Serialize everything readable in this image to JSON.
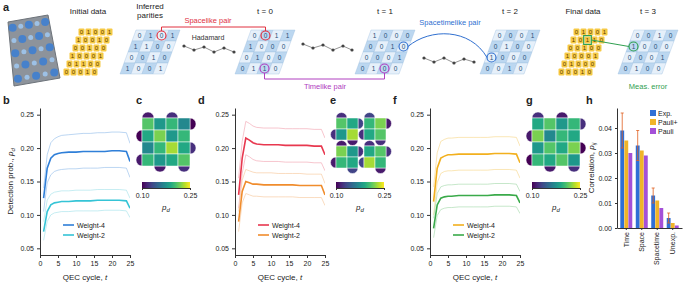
{
  "diagram": {
    "panel": "a",
    "initial_label": "Initial data",
    "final_label": "Final data",
    "initial_data": [
      [
        0,
        1,
        0,
        0,
        1
      ],
      [
        1,
        0,
        0,
        1,
        0
      ],
      [
        0,
        0,
        1,
        0,
        0
      ],
      [
        1,
        0,
        0,
        0,
        1
      ],
      [
        0,
        1,
        1,
        0,
        0
      ],
      [
        0,
        0,
        0,
        1,
        0
      ]
    ],
    "final_data": [
      [
        0,
        1,
        0,
        0,
        1
      ],
      [
        1,
        0,
        1,
        1,
        0
      ],
      [
        0,
        0,
        1,
        0,
        0
      ],
      [
        1,
        0,
        0,
        0,
        1
      ],
      [
        0,
        1,
        0,
        0,
        0
      ],
      [
        0,
        0,
        0,
        1,
        0
      ]
    ],
    "lattices": [
      {
        "label": [
          "Inferred",
          "parities"
        ],
        "bits": [
          [
            0,
            1,
            0,
            1
          ],
          [
            1,
            1,
            0,
            0
          ],
          [
            0,
            0,
            1,
            0
          ],
          [
            1,
            0,
            0,
            1
          ]
        ]
      },
      {
        "label": "t = 0",
        "bits": [
          [
            0,
            0,
            1,
            1
          ],
          [
            1,
            0,
            0,
            0
          ],
          [
            0,
            1,
            0,
            0
          ],
          [
            0,
            1,
            1,
            0
          ]
        ]
      },
      {
        "label": "t = 1",
        "bits": [
          [
            1,
            0,
            0,
            0
          ],
          [
            0,
            0,
            1,
            0
          ],
          [
            0,
            0,
            0,
            1
          ],
          [
            0,
            1,
            0,
            0
          ]
        ]
      },
      {
        "label": "t = 2",
        "bits": [
          [
            0,
            0,
            0,
            1
          ],
          [
            0,
            1,
            0,
            0
          ],
          [
            1,
            0,
            0,
            0
          ],
          [
            0,
            0,
            1,
            0
          ]
        ]
      },
      {
        "label": "t = 3",
        "bits": [
          [
            0,
            0,
            1,
            0
          ],
          [
            1,
            0,
            0,
            0
          ],
          [
            0,
            0,
            0,
            1
          ],
          [
            0,
            1,
            0,
            0
          ]
        ]
      }
    ],
    "annotations": [
      {
        "text": "Hadamard",
        "color": "#333333"
      },
      {
        "text": "Spacelike pair",
        "color": "#e0303f"
      },
      {
        "text": "Timelike pair",
        "color": "#b040c0"
      },
      {
        "text": "Spacetimelike pair",
        "color": "#3070d0"
      },
      {
        "text": "Meas. error",
        "color": "#30a050"
      }
    ]
  },
  "chart_data": [
    {
      "panel": "b",
      "type": "line",
      "x": [
        1,
        2,
        3,
        4,
        5,
        6,
        8,
        10,
        12,
        14,
        16,
        18,
        20,
        22,
        24,
        25
      ],
      "xlim": [
        0,
        25
      ],
      "xticks": [
        0,
        5,
        10,
        15,
        20,
        25
      ],
      "ylim": [
        0.04,
        0.26
      ],
      "yticks": [
        0.05,
        {
          "value": 0.1,
          "label": "0.10"
        },
        0.15,
        {
          "value": 0.2,
          "label": "0.20"
        },
        0.25
      ],
      "x_label": {
        "text": "QEC cycle, ",
        "symbol": "t"
      },
      "y_label": {
        "text": "Detection prob., ",
        "symbol": "p",
        "sub": "d"
      },
      "legend": "lower center",
      "series": [
        {
          "color": "#8fbbea",
          "values": [
            0.14,
            0.19,
            0.208,
            0.214,
            0.217,
            0.219,
            0.22,
            0.221,
            0.222,
            0.222,
            0.223,
            0.223,
            0.224,
            0.224,
            0.223,
            0.207
          ]
        },
        {
          "color": "#8fbbea",
          "values": [
            0.105,
            0.148,
            0.16,
            0.165,
            0.167,
            0.168,
            0.169,
            0.169,
            0.17,
            0.17,
            0.17,
            0.171,
            0.171,
            0.171,
            0.17,
            0.156
          ]
        },
        {
          "color": "#9fe0ea",
          "values": [
            0.09,
            0.122,
            0.131,
            0.134,
            0.135,
            0.136,
            0.136,
            0.137,
            0.137,
            0.137,
            0.138,
            0.138,
            0.138,
            0.138,
            0.137,
            0.125
          ]
        },
        {
          "color": "#9fe0ea",
          "values": [
            0.062,
            0.09,
            0.1,
            0.103,
            0.104,
            0.105,
            0.105,
            0.106,
            0.106,
            0.106,
            0.106,
            0.107,
            0.107,
            0.107,
            0.106,
            0.096
          ]
        },
        {
          "name": "Weight-4",
          "color": "#2f7fd8",
          "values": [
            0.125,
            0.17,
            0.185,
            0.19,
            0.192,
            0.193,
            0.194,
            0.194,
            0.195,
            0.195,
            0.195,
            0.195,
            0.196,
            0.196,
            0.195,
            0.18
          ]
        },
        {
          "name": "Weight-2",
          "color": "#35c4d6",
          "values": [
            0.075,
            0.105,
            0.115,
            0.118,
            0.119,
            0.12,
            0.12,
            0.121,
            0.121,
            0.121,
            0.122,
            0.122,
            0.122,
            0.122,
            0.121,
            0.11
          ]
        }
      ]
    },
    {
      "panel": "c",
      "type": "heatmap",
      "cells": [
        [
          0.21,
          0.18,
          0.2,
          0.17
        ],
        [
          0.19,
          0.22,
          0.18,
          0.2
        ],
        [
          0.17,
          0.2,
          0.23,
          0.19
        ],
        [
          0.2,
          0.18,
          0.19,
          0.21
        ]
      ],
      "boundary": [
        0.11,
        0.12,
        0.1,
        0.12,
        0.11,
        0.12,
        0.1,
        0.11
      ],
      "colorbar": {
        "range": [
          0.1,
          0.25
        ],
        "ticks": [
          {
            "value": 0.1,
            "label": "0.10"
          },
          0.25
        ],
        "label": {
          "symbol": "p",
          "sub": "d"
        }
      }
    },
    {
      "panel": "d",
      "type": "line",
      "x": [
        1,
        2,
        3,
        4,
        5,
        6,
        8,
        10,
        12,
        14,
        16,
        18,
        20,
        22,
        24,
        25
      ],
      "xlim": [
        0,
        25
      ],
      "xticks": [
        0,
        5,
        10,
        15,
        20,
        25
      ],
      "ylim": [
        0.04,
        0.26
      ],
      "yticks": [
        0.05,
        {
          "value": 0.1,
          "label": "0.10"
        },
        0.15,
        {
          "value": 0.2,
          "label": "0.20"
        },
        0.25
      ],
      "x_label": {
        "text": "QEC cycle, ",
        "symbol": "t"
      },
      "legend": "lower center",
      "series": [
        {
          "color": "#f2a0ad",
          "values": [
            0.155,
            0.21,
            0.24,
            0.237,
            0.233,
            0.231,
            0.23,
            0.23,
            0.23,
            0.229,
            0.229,
            0.229,
            0.229,
            0.228,
            0.228,
            0.215
          ]
        },
        {
          "color": "#f2a0ad",
          "values": [
            0.11,
            0.162,
            0.19,
            0.187,
            0.183,
            0.181,
            0.18,
            0.18,
            0.18,
            0.179,
            0.179,
            0.179,
            0.179,
            0.178,
            0.178,
            0.166
          ]
        },
        {
          "color": "#f7c596",
          "values": [
            0.105,
            0.152,
            0.168,
            0.166,
            0.164,
            0.163,
            0.163,
            0.163,
            0.162,
            0.162,
            0.162,
            0.162,
            0.161,
            0.161,
            0.161,
            0.147
          ]
        },
        {
          "color": "#f7c596",
          "values": [
            0.075,
            0.118,
            0.132,
            0.13,
            0.128,
            0.128,
            0.127,
            0.127,
            0.127,
            0.127,
            0.127,
            0.126,
            0.126,
            0.126,
            0.126,
            0.114
          ]
        },
        {
          "name": "Weight-4",
          "color": "#e8384f",
          "values": [
            0.13,
            0.185,
            0.215,
            0.212,
            0.208,
            0.206,
            0.205,
            0.205,
            0.205,
            0.204,
            0.204,
            0.204,
            0.204,
            0.203,
            0.203,
            0.19
          ]
        },
        {
          "name": "Weight-2",
          "color": "#f08c2c",
          "values": [
            0.09,
            0.135,
            0.15,
            0.148,
            0.146,
            0.146,
            0.145,
            0.145,
            0.145,
            0.145,
            0.145,
            0.144,
            0.144,
            0.144,
            0.144,
            0.13
          ]
        }
      ]
    },
    {
      "panel": "e",
      "type": "heatmap",
      "blocks": [
        {
          "cells": [
            [
              0.21,
              0.19
            ],
            [
              0.18,
              0.23
            ]
          ],
          "boundary": [
            0.12,
            0.13,
            0.11,
            0.12
          ]
        },
        {
          "cells": [
            [
              0.2,
              0.22
            ],
            [
              0.19,
              0.21
            ]
          ],
          "boundary": [
            0.13,
            0.11,
            0.12,
            0.12
          ]
        },
        {
          "cells": [
            [
              0.22,
              0.18
            ],
            [
              0.2,
              0.19
            ]
          ],
          "boundary": [
            0.11,
            0.12,
            0.13,
            0.11
          ]
        },
        {
          "cells": [
            [
              0.19,
              0.21
            ],
            [
              0.23,
              0.2
            ]
          ],
          "boundary": [
            0.12,
            0.12,
            0.11,
            0.13
          ]
        }
      ],
      "colorbar": {
        "range": [
          0.1,
          0.25
        ],
        "ticks": [
          {
            "value": 0.1,
            "label": "0.10"
          },
          0.25
        ],
        "label": {
          "symbol": "p",
          "sub": "d"
        }
      }
    },
    {
      "panel": "f",
      "type": "line",
      "x": [
        1,
        2,
        3,
        4,
        5,
        6,
        8,
        10,
        12,
        14,
        16,
        18,
        20,
        22,
        24,
        25
      ],
      "xlim": [
        0,
        25
      ],
      "xticks": [
        0,
        5,
        10,
        15,
        20,
        25
      ],
      "ylim": [
        0.04,
        0.26
      ],
      "yticks": [
        0.05,
        {
          "value": 0.1,
          "label": "0.10"
        },
        0.15,
        {
          "value": 0.2,
          "label": "0.20"
        },
        0.25
      ],
      "x_label": {
        "text": "QEC cycle, ",
        "symbol": "t"
      },
      "legend": "lower center",
      "series": [
        {
          "color": "#f7d585",
          "values": [
            0.142,
            0.193,
            0.21,
            0.213,
            0.215,
            0.215,
            0.216,
            0.216,
            0.216,
            0.216,
            0.216,
            0.217,
            0.217,
            0.217,
            0.216,
            0.203
          ]
        },
        {
          "color": "#f7d585",
          "values": [
            0.1,
            0.148,
            0.162,
            0.165,
            0.166,
            0.166,
            0.167,
            0.167,
            0.167,
            0.167,
            0.167,
            0.168,
            0.168,
            0.168,
            0.167,
            0.155
          ]
        },
        {
          "color": "#9fd6a6",
          "values": [
            0.095,
            0.132,
            0.142,
            0.144,
            0.145,
            0.145,
            0.146,
            0.146,
            0.146,
            0.146,
            0.146,
            0.147,
            0.147,
            0.147,
            0.146,
            0.135
          ]
        },
        {
          "color": "#9fd6a6",
          "values": [
            0.066,
            0.099,
            0.108,
            0.11,
            0.111,
            0.111,
            0.112,
            0.112,
            0.112,
            0.112,
            0.112,
            0.113,
            0.113,
            0.113,
            0.112,
            0.102
          ]
        },
        {
          "name": "Weight-4",
          "color": "#f2b01e",
          "values": [
            0.12,
            0.17,
            0.185,
            0.188,
            0.19,
            0.19,
            0.191,
            0.191,
            0.191,
            0.191,
            0.191,
            0.192,
            0.192,
            0.192,
            0.191,
            0.178
          ]
        },
        {
          "name": "Weight-2",
          "color": "#3aaa4a",
          "values": [
            0.08,
            0.115,
            0.125,
            0.127,
            0.128,
            0.128,
            0.129,
            0.129,
            0.129,
            0.129,
            0.129,
            0.13,
            0.13,
            0.13,
            0.129,
            0.118
          ]
        }
      ]
    },
    {
      "panel": "g",
      "type": "heatmap",
      "cells": [
        [
          0.19,
          0.21,
          0.18,
          0.2
        ],
        [
          0.22,
          0.17,
          0.2,
          0.19
        ],
        [
          0.18,
          0.21,
          0.19,
          0.22
        ],
        [
          0.2,
          0.19,
          0.21,
          0.18
        ]
      ],
      "boundary": [
        0.12,
        0.11,
        0.12,
        0.1,
        0.11,
        0.12,
        0.11,
        0.1
      ],
      "colorbar": {
        "range": [
          0.1,
          0.25
        ],
        "ticks": [
          {
            "value": 0.1,
            "label": "0.10"
          },
          0.25
        ],
        "label": {
          "symbol": "p",
          "sub": "d"
        }
      }
    },
    {
      "panel": "h",
      "type": "bar",
      "categories": [
        "Time",
        "Space",
        "Spacetime",
        "Unexp."
      ],
      "ylim": [
        0,
        0.048
      ],
      "yticks": [
        {
          "value": 0,
          "label": "0.00"
        },
        0.01,
        0.02,
        0.03,
        0.04
      ],
      "y_label": {
        "text": "Correlation, ",
        "symbol": "p",
        "sub": "ij"
      },
      "legend": "upper right",
      "series": [
        {
          "name": "Exp.",
          "color": "#2f6fd6",
          "values": [
            0.039,
            0.033,
            0.013,
            0.004
          ],
          "errors": [
            0.007,
            0.006,
            0.003,
            0.002
          ]
        },
        {
          "name": "Pauli+",
          "color": "#f0b429",
          "values": [
            0.035,
            0.031,
            0.011,
            0.002
          ]
        },
        {
          "name": "Pauli",
          "color": "#a450d8",
          "values": [
            0.03,
            0.029,
            0.008,
            0.001
          ]
        }
      ]
    }
  ]
}
